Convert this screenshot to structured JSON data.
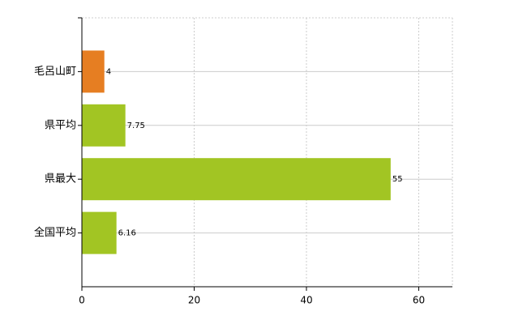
{
  "chart_data": {
    "type": "barh",
    "categories": [
      "毛呂山町",
      "県平均",
      "県最大",
      "全国平均"
    ],
    "values": [
      4,
      7.75,
      55,
      6.16
    ],
    "colors": [
      "#e67e22",
      "#a2c523",
      "#a2c523",
      "#a2c523"
    ],
    "xlim": [
      0,
      66
    ],
    "xticks": [
      0,
      20,
      40,
      60
    ],
    "grid": true
  }
}
